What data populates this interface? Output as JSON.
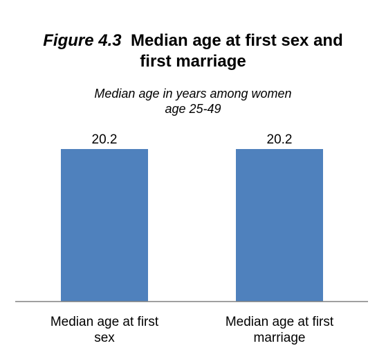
{
  "figure": {
    "number": "Figure 4.3",
    "title_line1": "Median age at first sex and",
    "title_line2": "first marriage",
    "subtitle_line1": "Median age in years among women",
    "subtitle_line2": "age 25-49"
  },
  "chart_data": {
    "type": "bar",
    "title": "Median age at first sex and first marriage",
    "subtitle": "Median age in years among women age 25-49",
    "categories": [
      [
        "Median age at first",
        "sex"
      ],
      [
        "Median age at first",
        "marriage"
      ]
    ],
    "values": [
      20.2,
      20.2
    ],
    "data_labels": [
      "20.2",
      "20.2"
    ],
    "xlabel": "",
    "ylabel": "",
    "grid": false,
    "legend": "none",
    "bar_color": "#4f81bd",
    "axis_color": "#808080"
  }
}
